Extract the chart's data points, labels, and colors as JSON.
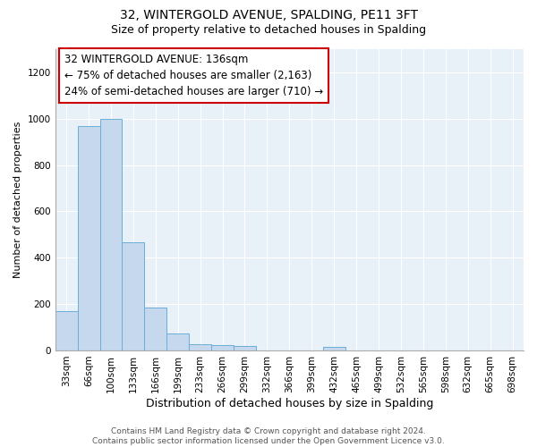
{
  "title": "32, WINTERGOLD AVENUE, SPALDING, PE11 3FT",
  "subtitle": "Size of property relative to detached houses in Spalding",
  "xlabel": "Distribution of detached houses by size in Spalding",
  "ylabel": "Number of detached properties",
  "categories": [
    "33sqm",
    "66sqm",
    "100sqm",
    "133sqm",
    "166sqm",
    "199sqm",
    "233sqm",
    "266sqm",
    "299sqm",
    "332sqm",
    "366sqm",
    "399sqm",
    "432sqm",
    "465sqm",
    "499sqm",
    "532sqm",
    "565sqm",
    "598sqm",
    "632sqm",
    "665sqm",
    "698sqm"
  ],
  "values": [
    170,
    970,
    1000,
    465,
    185,
    75,
    28,
    22,
    20,
    0,
    0,
    0,
    15,
    0,
    0,
    0,
    0,
    0,
    0,
    0,
    0
  ],
  "bar_color": "#c5d8ed",
  "bar_edge_color": "#6aaed6",
  "annotation_box_color": "#ffffff",
  "annotation_box_edge": "#cc0000",
  "annotation_line1": "32 WINTERGOLD AVENUE: 136sqm",
  "annotation_line2": "← 75% of detached houses are smaller (2,163)",
  "annotation_line3": "24% of semi-detached houses are larger (710) →",
  "ylim": [
    0,
    1300
  ],
  "yticks": [
    0,
    200,
    400,
    600,
    800,
    1000,
    1200
  ],
  "fig_bg": "#ffffff",
  "plot_bg": "#e8f0f8",
  "grid_color": "#ffffff",
  "footer": "Contains HM Land Registry data © Crown copyright and database right 2024.\nContains public sector information licensed under the Open Government Licence v3.0.",
  "title_fontsize": 10,
  "subtitle_fontsize": 9,
  "xlabel_fontsize": 9,
  "ylabel_fontsize": 8,
  "tick_fontsize": 7.5,
  "annotation_fontsize": 8.5,
  "footer_fontsize": 6.5
}
